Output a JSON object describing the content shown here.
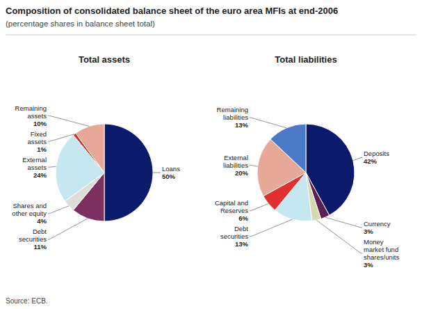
{
  "title": "Composition of consolidated balance sheet of the euro area MFIs at end-2006",
  "subtitle": "(percentage shares in balance sheet total)",
  "source": "Source: ECB.",
  "chart_data": [
    {
      "type": "pie",
      "title": "Total assets",
      "categories": [
        "Loans",
        "Debt\nsecurities",
        "Shares and\nother equity",
        "External\nassets",
        "Fixed\nassets",
        "Remaining\nassets"
      ],
      "values": [
        50,
        11,
        4,
        24,
        1,
        10
      ],
      "value_labels": [
        "50%",
        "11%",
        "4%",
        "24%",
        "1%",
        "10%"
      ],
      "colors": [
        "#0c1a6b",
        "#7b3060",
        "#deded8",
        "#c5e8f0",
        "#d03030",
        "#e8a898"
      ],
      "data_labels": true
    },
    {
      "type": "pie",
      "title": "Total liabilities",
      "categories": [
        "Deposits",
        "Currency",
        "Money\nmarket fund\nshares/units",
        "Debt\nsecurities",
        "Capital and\nReserves",
        "External\nliabilities",
        "Remaining\nliabilities"
      ],
      "values": [
        42,
        3,
        3,
        13,
        6,
        20,
        13
      ],
      "value_labels": [
        "42%",
        "3%",
        "3%",
        "13%",
        "6%",
        "20%",
        "13%"
      ],
      "colors": [
        "#0c1a6b",
        "#5a2050",
        "#d8d8b0",
        "#c5e8f0",
        "#e03030",
        "#e8a898",
        "#4a7ac8"
      ],
      "data_labels": true
    }
  ]
}
